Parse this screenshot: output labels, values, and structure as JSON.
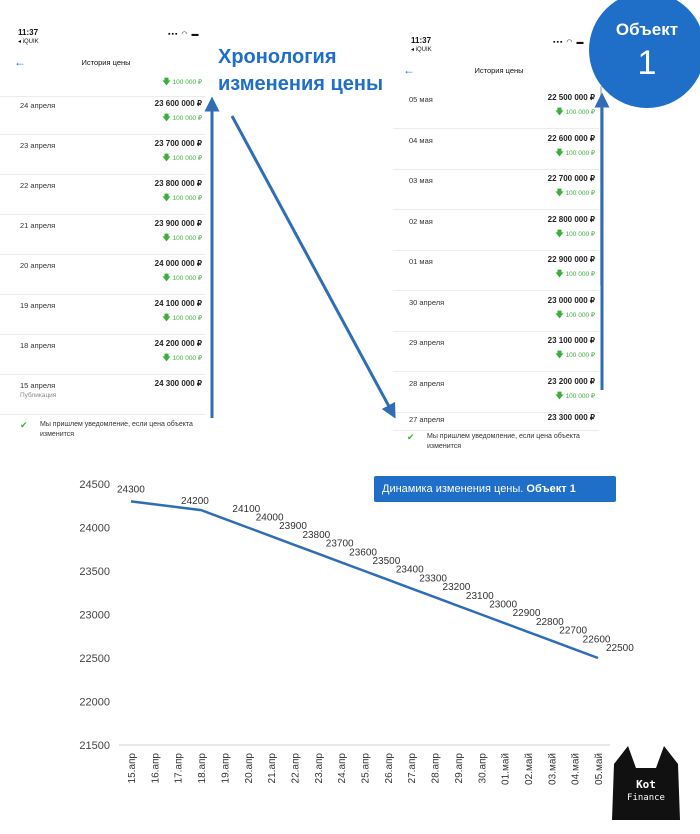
{
  "annotation_title": "Хронология изменения цены",
  "badge": {
    "label": "Объект",
    "number": "1"
  },
  "chart_caption": {
    "text": "Динамика изменения цены.",
    "bold": "Объект 1"
  },
  "colors": {
    "accent": "#1f6ec8",
    "delta_green": "#3cae3c"
  },
  "logo": {
    "line1": "Kot",
    "line2": "Finance"
  },
  "phone_left": {
    "time": "11:37",
    "carrier": "◂ iQUIK",
    "title": "История цены",
    "top_delta": "100 000 ₽",
    "rows": [
      {
        "date": "24 апреля",
        "price": "23 600 000 ₽",
        "delta": "100 000 ₽"
      },
      {
        "date": "23 апреля",
        "price": "23 700 000 ₽",
        "delta": "100 000 ₽"
      },
      {
        "date": "22 апреля",
        "price": "23 800 000 ₽",
        "delta": "100 000 ₽"
      },
      {
        "date": "21 апреля",
        "price": "23 900 000 ₽",
        "delta": "100 000 ₽"
      },
      {
        "date": "20 апреля",
        "price": "24 000 000 ₽",
        "delta": "100 000 ₽"
      },
      {
        "date": "19 апреля",
        "price": "24 100 000 ₽",
        "delta": "100 000 ₽"
      },
      {
        "date": "18 апреля",
        "price": "24 200 000 ₽",
        "delta": "100 000 ₽"
      }
    ],
    "last_row": {
      "date": "15 апреля",
      "price": "24 300 000 ₽",
      "note": "Публикация"
    },
    "notice": "Мы пришлем уведомление, если цена объекта изменится"
  },
  "phone_right": {
    "time": "11:37",
    "carrier": "◂ iQUIK",
    "title": "История цены",
    "rows": [
      {
        "date": "05 мая",
        "price": "22 500 000 ₽",
        "delta": "100 000 ₽"
      },
      {
        "date": "04 мая",
        "price": "22 600 000 ₽",
        "delta": "100 000 ₽"
      },
      {
        "date": "03 мая",
        "price": "22 700 000 ₽",
        "delta": "100 000 ₽"
      },
      {
        "date": "02 мая",
        "price": "22 800 000 ₽",
        "delta": "100 000 ₽"
      },
      {
        "date": "01 мая",
        "price": "22 900 000 ₽",
        "delta": "100 000 ₽"
      },
      {
        "date": "30 апреля",
        "price": "23 000 000 ₽",
        "delta": "100 000 ₽"
      },
      {
        "date": "29 апреля",
        "price": "23 100 000 ₽",
        "delta": "100 000 ₽"
      },
      {
        "date": "28 апреля",
        "price": "23 200 000 ₽",
        "delta": "100 000 ₽"
      }
    ],
    "last_row": {
      "date": "27 апреля",
      "price": "23 300 000 ₽"
    },
    "notice": "Мы пришлем уведомление, если цена объекта изменится"
  },
  "chart_data": {
    "type": "line",
    "title": "",
    "xlabel": "",
    "ylabel": "",
    "ylim": [
      21500,
      24500
    ],
    "yticks": [
      21500,
      22000,
      22500,
      23000,
      23500,
      24000,
      24500
    ],
    "categories": [
      "15.апр",
      "16.апр",
      "17.апр",
      "18.апр",
      "19.апр",
      "20.апр",
      "21.апр",
      "22.апр",
      "23.апр",
      "24.апр",
      "25.апр",
      "26.апр",
      "27.апр",
      "28.апр",
      "29.апр",
      "30.апр",
      "01.май",
      "02.май",
      "03.май",
      "04.май",
      "05.май"
    ],
    "values": [
      24300,
      null,
      null,
      24200,
      24100,
      24000,
      23900,
      23800,
      23700,
      23600,
      23500,
      23400,
      23300,
      23200,
      23100,
      23000,
      22900,
      22800,
      22700,
      22600,
      22500
    ],
    "data_labels": [
      {
        "category": "15.апр",
        "text": "24300"
      },
      {
        "category": "18.апр",
        "text": "24200"
      },
      {
        "category": "19.апр",
        "text": "24100"
      },
      {
        "category": "20.апр",
        "text": "24000"
      },
      {
        "category": "21.апр",
        "text": "23900"
      },
      {
        "category": "22.апр",
        "text": "23800"
      },
      {
        "category": "23.апр",
        "text": "23700"
      },
      {
        "category": "24.апр",
        "text": "23600"
      },
      {
        "category": "25.апр",
        "text": "23500"
      },
      {
        "category": "26.апр",
        "text": "23400"
      },
      {
        "category": "27.апр",
        "text": "23300"
      },
      {
        "category": "28.апр",
        "text": "23200"
      },
      {
        "category": "29.апр",
        "text": "23100"
      },
      {
        "category": "30.апр",
        "text": "23000"
      },
      {
        "category": "01.май",
        "text": "22900"
      },
      {
        "category": "02.май",
        "text": "22800"
      },
      {
        "category": "03.май",
        "text": "22700"
      },
      {
        "category": "04.май",
        "text": "22600"
      },
      {
        "category": "05.май",
        "text": "22500"
      }
    ],
    "grid": false,
    "legend": "none",
    "line_color": "#2f6db5"
  }
}
